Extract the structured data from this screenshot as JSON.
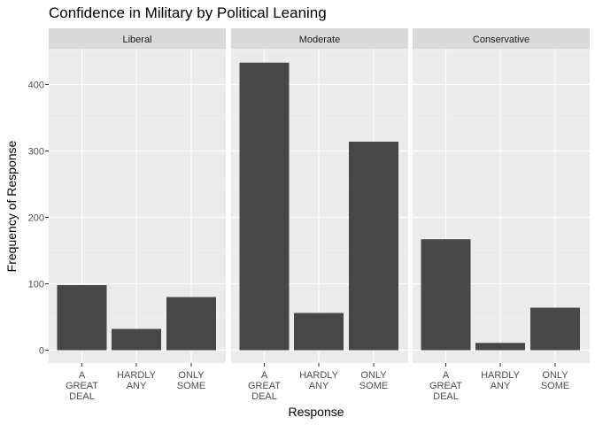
{
  "chart_data": {
    "type": "bar",
    "title": "Confidence in Military by Political Leaning",
    "xlabel": "Response",
    "ylabel": "Frequency of Response",
    "ylim": [
      0,
      460
    ],
    "yticks": [
      0,
      100,
      200,
      300,
      400
    ],
    "categories": [
      [
        "A",
        "GREAT",
        "DEAL"
      ],
      [
        "HARDLY",
        "ANY"
      ],
      [
        "ONLY",
        "SOME"
      ]
    ],
    "facets": [
      {
        "name": "Liberal",
        "values": [
          98,
          32,
          80
        ]
      },
      {
        "name": "Moderate",
        "values": [
          433,
          56,
          314
        ]
      },
      {
        "name": "Conservative",
        "values": [
          167,
          11,
          64
        ]
      }
    ],
    "colors": {
      "bar": "#474747",
      "panel": "#ebebeb",
      "strip": "#d9d9d9",
      "grid": "#ffffff",
      "tick": "#333333"
    }
  }
}
